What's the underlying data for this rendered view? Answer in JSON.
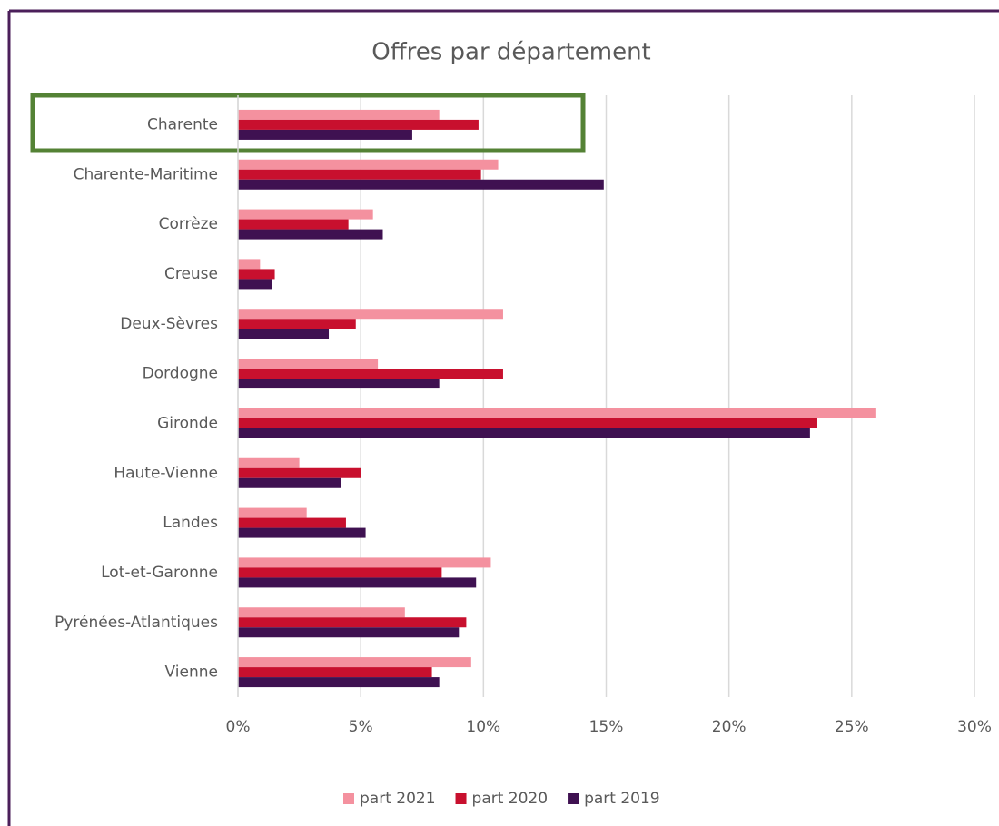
{
  "chart_data": {
    "type": "hbar",
    "title": "Offres par département",
    "categories": [
      "Charente",
      "Charente-Maritime",
      "Corrèze",
      "Creuse",
      "Deux-Sèvres",
      "Dordogne",
      "Gironde",
      "Haute-Vienne",
      "Landes",
      "Lot-et-Garonne",
      "Pyrénées-Atlantiques",
      "Vienne"
    ],
    "series": [
      {
        "name": "part 2021",
        "color": "#f4919f",
        "values": [
          8.2,
          10.6,
          5.5,
          0.9,
          10.8,
          5.7,
          26.0,
          2.5,
          2.8,
          10.3,
          6.8,
          9.5
        ]
      },
      {
        "name": "part 2020",
        "color": "#c8102e",
        "values": [
          9.8,
          9.9,
          4.5,
          1.5,
          4.8,
          10.8,
          23.6,
          5.0,
          4.4,
          8.3,
          9.3,
          7.9
        ]
      },
      {
        "name": "part 2019",
        "color": "#3f1151",
        "values": [
          7.1,
          14.9,
          5.9,
          1.4,
          3.7,
          8.2,
          23.3,
          4.2,
          5.2,
          9.7,
          9.0,
          8.2
        ]
      }
    ],
    "xlim": [
      0,
      30
    ],
    "xticks": [
      {
        "value": 0,
        "label": "0%"
      },
      {
        "value": 5,
        "label": "5%"
      },
      {
        "value": 10,
        "label": "10%"
      },
      {
        "value": 15,
        "label": "15%"
      },
      {
        "value": 20,
        "label": "20%"
      },
      {
        "value": 25,
        "label": "25%"
      },
      {
        "value": 30,
        "label": "30%"
      }
    ],
    "grid": true,
    "legend": "bottom"
  }
}
